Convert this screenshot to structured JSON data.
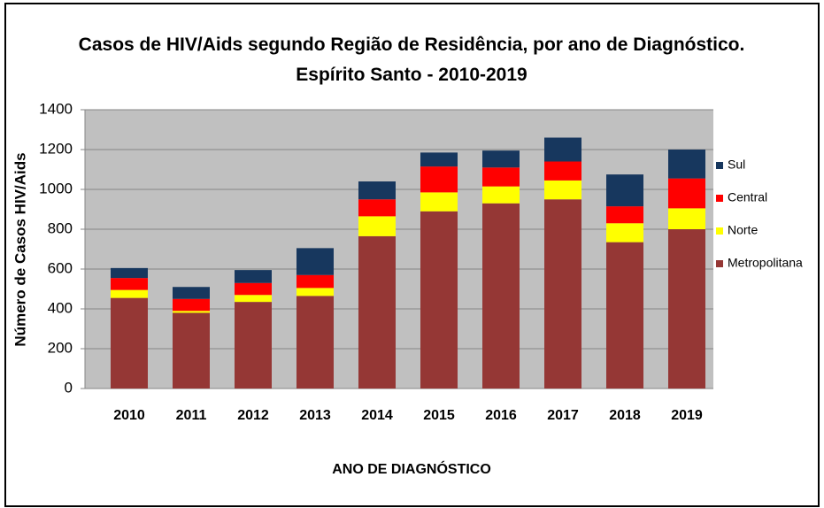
{
  "chart_data": {
    "type": "stacked_bar",
    "title": "Casos de HIV/Aids segundo Região de Residência, por ano de Diagnóstico. Espírito Santo - 2010-2019",
    "xlabel": "ANO DE DIAGNÓSTICO",
    "ylabel": "Número de Casos HIV/Aids",
    "categories": [
      "2010",
      "2011",
      "2012",
      "2013",
      "2014",
      "2015",
      "2016",
      "2017",
      "2018",
      "2019"
    ],
    "series": [
      {
        "name": "Metropolitana",
        "color": "#953735",
        "values": [
          455,
          380,
          435,
          465,
          765,
          890,
          930,
          950,
          735,
          800
        ]
      },
      {
        "name": "Norte",
        "color": "#ffff00",
        "values": [
          40,
          10,
          35,
          40,
          100,
          95,
          85,
          95,
          95,
          105
        ]
      },
      {
        "name": "Central",
        "color": "#ff0000",
        "values": [
          60,
          60,
          60,
          65,
          85,
          130,
          95,
          95,
          85,
          150
        ]
      },
      {
        "name": "Sul",
        "color": "#17375e",
        "values": [
          50,
          60,
          65,
          135,
          90,
          70,
          85,
          120,
          160,
          145
        ]
      }
    ],
    "ylim": [
      0,
      1400
    ],
    "yticks": [
      0,
      200,
      400,
      600,
      800,
      1000,
      1200,
      1400
    ],
    "grid": true,
    "legend": "right"
  }
}
